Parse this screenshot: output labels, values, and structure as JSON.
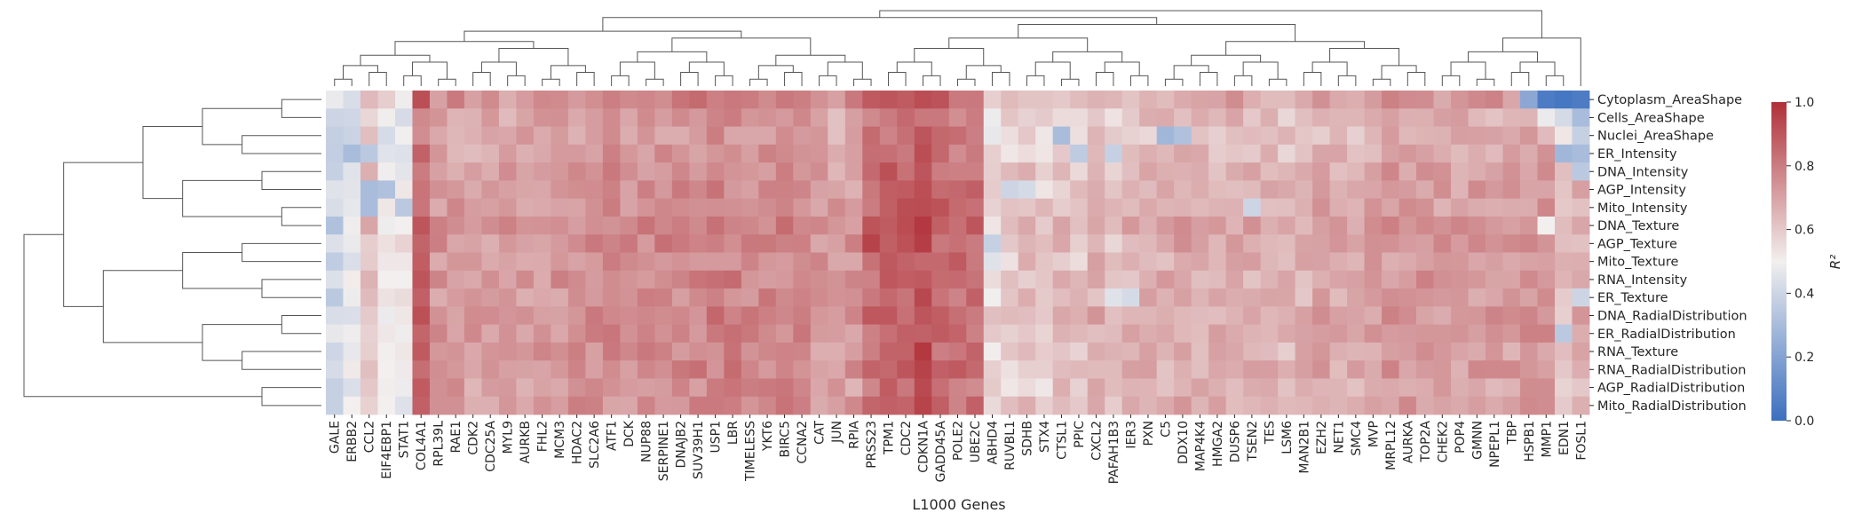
{
  "chart_data": {
    "type": "heatmap",
    "title": "",
    "xlabel": "L1000 Genes",
    "ylabel": "",
    "colorbar_label": "R²",
    "colorbar_ticks": [
      "0.0",
      "0.2",
      "0.4",
      "0.6",
      "0.8",
      "1.0"
    ],
    "colorbar_range": [
      0,
      1
    ],
    "colormap": {
      "low": "#3b6fbf",
      "mid": "#f2efee",
      "high": "#b03038"
    },
    "clustered": true,
    "columns": [
      "GALE",
      "ERBB2",
      "CCL2",
      "EIF4EBP1",
      "STAT1",
      "COL4A1",
      "RPL39L",
      "RAE1",
      "CDK2",
      "CDC25A",
      "MYL9",
      "AURKB",
      "FHL2",
      "MCM3",
      "HDAC2",
      "SLC2A6",
      "ATF1",
      "DCK",
      "NUP88",
      "SERPINE1",
      "DNAJB2",
      "SUV39H1",
      "USP1",
      "LBR",
      "TIMELESS",
      "YKT6",
      "BIRC5",
      "CCNA2",
      "CAT",
      "JUN",
      "RPIA",
      "PRSS23",
      "TPM1",
      "CDC2",
      "CDKN1A",
      "GADD45A",
      "POLE2",
      "UBE2C",
      "ABHD4",
      "RUVBL1",
      "SDHB",
      "STX4",
      "CTSL1",
      "PPIC",
      "CXCL2",
      "PAFAH1B3",
      "IER3",
      "PXN",
      "C5",
      "DDX10",
      "MAP4K4",
      "HMGA2",
      "DUSP6",
      "TSEN2",
      "TES",
      "LSM6",
      "MAN2B1",
      "EZH2",
      "NET1",
      "SMC4",
      "MVP",
      "MRPL12",
      "AURKA",
      "TOP2A",
      "CHEK2",
      "POP4",
      "GMNN",
      "NPEPL1",
      "TBP",
      "HSPB1",
      "MMP1",
      "EDN1",
      "FOSL1"
    ],
    "rows": [
      "Cytoplasm_AreaShape",
      "Cells_AreaShape",
      "Nuclei_AreaShape",
      "ER_Intensity",
      "DNA_Intensity",
      "AGP_Intensity",
      "Mito_Intensity",
      "DNA_Texture",
      "AGP_Texture",
      "Mito_Texture",
      "RNA_Intensity",
      "ER_Texture",
      "DNA_RadialDistribution",
      "ER_RadialDistribution",
      "RNA_Texture",
      "RNA_RadialDistribution",
      "AGP_RadialDistribution",
      "Mito_RadialDistribution"
    ],
    "column_baseline": [
      0.42,
      0.45,
      0.62,
      0.52,
      0.5,
      0.85,
      0.72,
      0.72,
      0.7,
      0.7,
      0.7,
      0.72,
      0.72,
      0.73,
      0.74,
      0.74,
      0.75,
      0.74,
      0.75,
      0.77,
      0.76,
      0.77,
      0.78,
      0.78,
      0.76,
      0.76,
      0.77,
      0.76,
      0.72,
      0.7,
      0.72,
      0.83,
      0.86,
      0.86,
      0.9,
      0.84,
      0.83,
      0.82,
      0.55,
      0.58,
      0.62,
      0.58,
      0.62,
      0.6,
      0.66,
      0.6,
      0.64,
      0.66,
      0.66,
      0.68,
      0.66,
      0.66,
      0.68,
      0.66,
      0.66,
      0.64,
      0.66,
      0.68,
      0.68,
      0.68,
      0.7,
      0.72,
      0.72,
      0.72,
      0.7,
      0.7,
      0.72,
      0.7,
      0.7,
      0.72,
      0.72,
      0.62,
      0.66
    ],
    "row_offset": [
      0.03,
      -0.03,
      -0.04,
      -0.02,
      0.0,
      0.0,
      0.01,
      0.03,
      0.02,
      0.0,
      0.01,
      0.0,
      0.02,
      0.01,
      0.0,
      0.01,
      -0.01,
      0.0
    ],
    "overrides": [
      {
        "row": 0,
        "col": 69,
        "value": 0.22
      },
      {
        "row": 0,
        "col": 70,
        "value": 0.05
      },
      {
        "row": 0,
        "col": 71,
        "value": 0.03
      },
      {
        "row": 0,
        "col": 72,
        "value": 0.05
      },
      {
        "row": 1,
        "col": 70,
        "value": 0.48
      },
      {
        "row": 1,
        "col": 71,
        "value": 0.42
      },
      {
        "row": 1,
        "col": 72,
        "value": 0.3
      },
      {
        "row": 2,
        "col": 72,
        "value": 0.38
      },
      {
        "row": 2,
        "col": 42,
        "value": 0.3
      },
      {
        "row": 2,
        "col": 48,
        "value": 0.28
      },
      {
        "row": 2,
        "col": 49,
        "value": 0.32
      },
      {
        "row": 3,
        "col": 1,
        "value": 0.3
      },
      {
        "row": 3,
        "col": 2,
        "value": 0.35
      },
      {
        "row": 3,
        "col": 71,
        "value": 0.28
      },
      {
        "row": 3,
        "col": 72,
        "value": 0.3
      },
      {
        "row": 3,
        "col": 43,
        "value": 0.36
      },
      {
        "row": 3,
        "col": 45,
        "value": 0.38
      },
      {
        "row": 4,
        "col": 0,
        "value": 0.38
      },
      {
        "row": 4,
        "col": 72,
        "value": 0.35
      },
      {
        "row": 5,
        "col": 2,
        "value": 0.3
      },
      {
        "row": 5,
        "col": 3,
        "value": 0.32
      },
      {
        "row": 5,
        "col": 39,
        "value": 0.4
      },
      {
        "row": 5,
        "col": 40,
        "value": 0.42
      },
      {
        "row": 6,
        "col": 2,
        "value": 0.3
      },
      {
        "row": 6,
        "col": 4,
        "value": 0.35
      },
      {
        "row": 6,
        "col": 53,
        "value": 0.4
      },
      {
        "row": 7,
        "col": 0,
        "value": 0.32
      },
      {
        "row": 7,
        "col": 4,
        "value": 0.5
      },
      {
        "row": 7,
        "col": 70,
        "value": 0.5
      },
      {
        "row": 8,
        "col": 38,
        "value": 0.38
      },
      {
        "row": 8,
        "col": 31,
        "value": 0.95
      },
      {
        "row": 9,
        "col": 38,
        "value": 0.45
      },
      {
        "row": 9,
        "col": 3,
        "value": 0.52
      },
      {
        "row": 9,
        "col": 4,
        "value": 0.52
      },
      {
        "row": 10,
        "col": 3,
        "value": 0.5
      },
      {
        "row": 10,
        "col": 4,
        "value": 0.5
      },
      {
        "row": 11,
        "col": 0,
        "value": 0.35
      },
      {
        "row": 11,
        "col": 72,
        "value": 0.4
      },
      {
        "row": 11,
        "col": 45,
        "value": 0.45
      },
      {
        "row": 11,
        "col": 46,
        "value": 0.42
      },
      {
        "row": 13,
        "col": 71,
        "value": 0.35
      },
      {
        "row": 14,
        "col": 34,
        "value": 0.98
      },
      {
        "row": 15,
        "col": 34,
        "value": 0.95
      },
      {
        "row": 16,
        "col": 41,
        "value": 0.52
      },
      {
        "row": 17,
        "col": 0,
        "value": 0.38
      }
    ]
  }
}
